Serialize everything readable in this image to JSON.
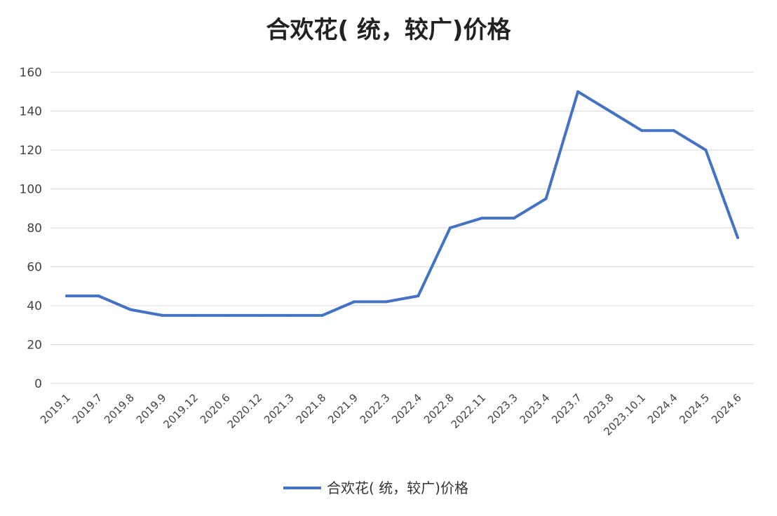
{
  "chart_data": {
    "type": "line",
    "title": "合欢花( 统，较广)价格",
    "categories": [
      "2019.1",
      "2019.7",
      "2019.8",
      "2019.9",
      "2019.12",
      "2020.6",
      "2020.12",
      "2021.3",
      "2021.8",
      "2021.9",
      "2022.3",
      "2022.4",
      "2022.8",
      "2022.11",
      "2023.3",
      "2023.4",
      "2023.7",
      "2023.8",
      "2023.10.1",
      "2024.4",
      "2024.5",
      "2024.6"
    ],
    "series": [
      {
        "name": "合欢花( 统，较广)价格",
        "values": [
          45,
          45,
          38,
          35,
          35,
          35,
          35,
          35,
          35,
          42,
          42,
          45,
          80,
          85,
          85,
          95,
          150,
          140,
          130,
          130,
          120,
          75
        ],
        "color": "#4472c4"
      }
    ],
    "ylim": [
      0,
      160
    ],
    "yticks": [
      "0",
      "20",
      "40",
      "60",
      "80",
      "100",
      "120",
      "140",
      "160"
    ],
    "grid": true,
    "legend_position": "bottom"
  }
}
